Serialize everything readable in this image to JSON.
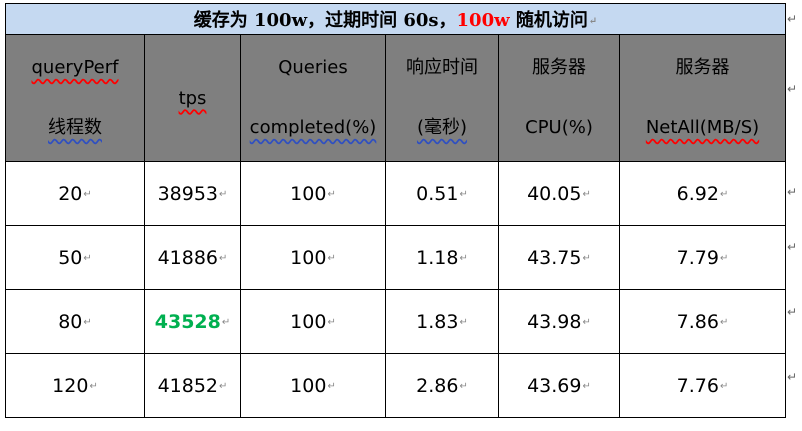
{
  "title": {
    "prefix": "缓存为 100w，过期时间 60s，",
    "highlight": "100w",
    "suffix": " 随机访问"
  },
  "headers": [
    {
      "lines": [
        "queryPerf",
        "线程数"
      ]
    },
    {
      "lines": [
        "tps"
      ]
    },
    {
      "lines": [
        "Queries",
        "completed(%)"
      ]
    },
    {
      "lines": [
        "响应时间",
        "(毫秒)"
      ]
    },
    {
      "lines": [
        "服务器",
        "CPU(%)"
      ]
    },
    {
      "lines": [
        "服务器",
        "NetAll(MB/S)"
      ]
    }
  ],
  "rows": [
    [
      "20",
      "38953",
      "100",
      "0.51",
      "40.05",
      "6.92"
    ],
    [
      "50",
      "41886",
      "100",
      "1.18",
      "43.75",
      "7.79"
    ],
    [
      "80",
      "43528",
      "100",
      "1.83",
      "43.98",
      "7.86"
    ],
    [
      "120",
      "41852",
      "100",
      "2.86",
      "43.69",
      "7.76"
    ]
  ],
  "highlight_color": "#00b050",
  "title_bg": "#c5d9f1",
  "header_bg": "#7f7f7f"
}
